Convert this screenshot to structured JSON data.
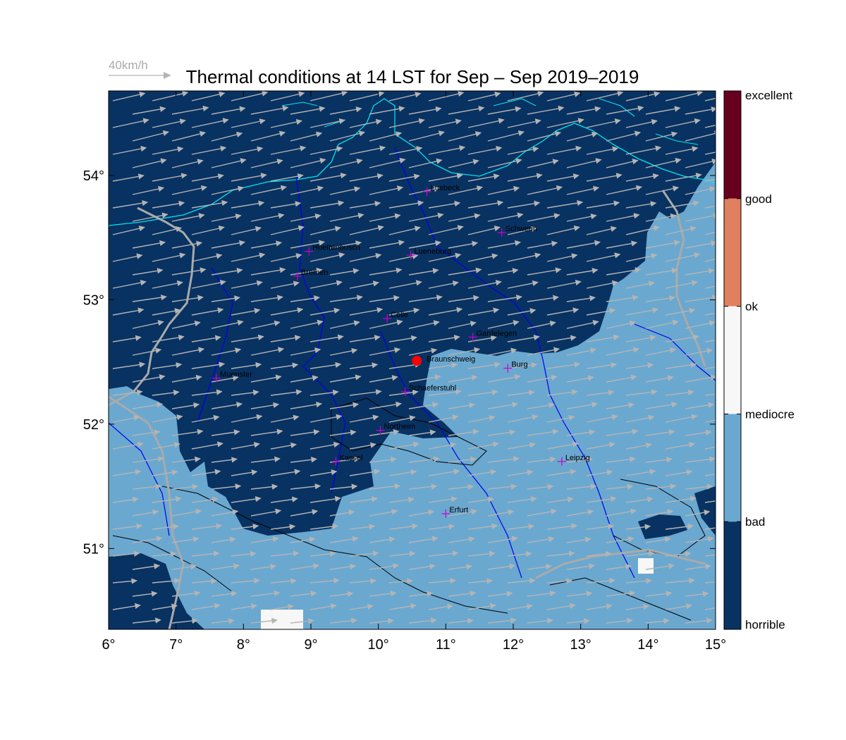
{
  "title": "Thermal conditions at 14 LST for Sep – Sep  2019–2019",
  "wind_reference": {
    "label": "40km/h"
  },
  "map": {
    "lon_range": [
      6,
      15
    ],
    "lat_range": [
      50.35,
      54.68
    ],
    "x_ticks": [
      "6°",
      "7°",
      "8°",
      "9°",
      "10°",
      "11°",
      "12°",
      "13°",
      "14°",
      "15°"
    ],
    "y_ticks": [
      "51°",
      "52°",
      "53°",
      "54°"
    ],
    "y_tick_values": [
      51,
      52,
      53,
      54
    ],
    "marker": {
      "name": "Braunschweig",
      "lon": 10.57,
      "lat": 52.51,
      "color": "#ff0000"
    },
    "cities": [
      {
        "name": "Luebeck",
        "lon": 10.72,
        "lat": 53.87
      },
      {
        "name": "Schwerin",
        "lon": 11.83,
        "lat": 53.54
      },
      {
        "name": "Hoettenbusch",
        "lon": 8.97,
        "lat": 53.39
      },
      {
        "name": "Lueneburg",
        "lon": 10.48,
        "lat": 53.36
      },
      {
        "name": "Bremen",
        "lon": 8.8,
        "lat": 53.19
      },
      {
        "name": "Celle",
        "lon": 10.13,
        "lat": 52.85
      },
      {
        "name": "Gardelegen",
        "lon": 11.4,
        "lat": 52.7
      },
      {
        "name": "Burg",
        "lon": 11.92,
        "lat": 52.45
      },
      {
        "name": "Muenster",
        "lon": 7.6,
        "lat": 52.37
      },
      {
        "name": "Schaeferstuhl",
        "lon": 10.4,
        "lat": 52.26
      },
      {
        "name": "Northeim",
        "lon": 10.03,
        "lat": 51.95
      },
      {
        "name": "Kassel",
        "lon": 9.37,
        "lat": 51.7
      },
      {
        "name": "Leipzig",
        "lon": 12.72,
        "lat": 51.7
      },
      {
        "name": "Erfurt",
        "lon": 11.0,
        "lat": 51.28
      }
    ]
  },
  "colorbar": {
    "levels": [
      {
        "label": "excellent",
        "color": "#67001f"
      },
      {
        "label": "good",
        "color": "#e0805f"
      },
      {
        "label": "ok",
        "color": "#f7f7f7"
      },
      {
        "label": "mediocre",
        "color": "#f7f7f7"
      },
      {
        "label": "bad",
        "color": "#6aa8d0"
      },
      {
        "label": "horrible",
        "color": "#083262"
      }
    ],
    "segment_colors": [
      "#67001f",
      "#e0805f",
      "#f7f7f7",
      "#6aa8d0",
      "#083262"
    ]
  },
  "colors": {
    "horrible": "#083262",
    "bad": "#6aa8d0",
    "coast": "#00e5ee",
    "rivers": "#0000ee",
    "borders": "#aaaaaa",
    "contours": "#000000",
    "wind": "#b4b4b4",
    "city_marker": "#cc00cc"
  }
}
